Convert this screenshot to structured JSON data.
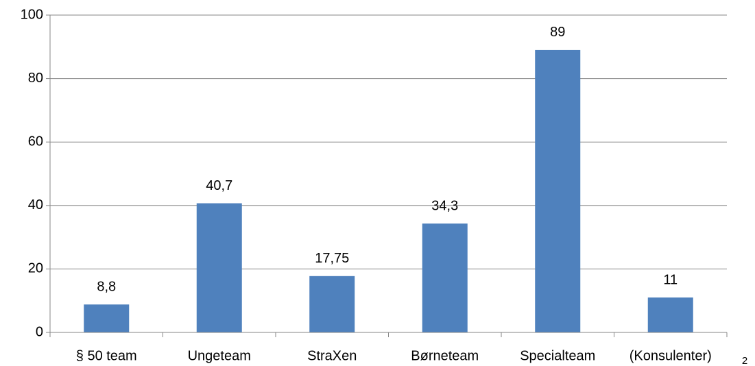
{
  "chart_data": {
    "type": "bar",
    "categories": [
      "§ 50 team",
      "Ungeteam",
      "StraXen",
      "Børneteam",
      "Specialteam",
      "(Konsulenter)"
    ],
    "values": [
      8.8,
      40.7,
      17.75,
      34.3,
      89,
      11
    ],
    "value_labels": [
      "8,8",
      "40,7",
      "17,75",
      "34,3",
      "89",
      "11"
    ],
    "color": "#4f81bd",
    "ylim": [
      0,
      100
    ],
    "yticks": [
      0,
      20,
      40,
      60,
      80,
      100
    ],
    "grid": true,
    "annotations": [
      "2"
    ]
  }
}
